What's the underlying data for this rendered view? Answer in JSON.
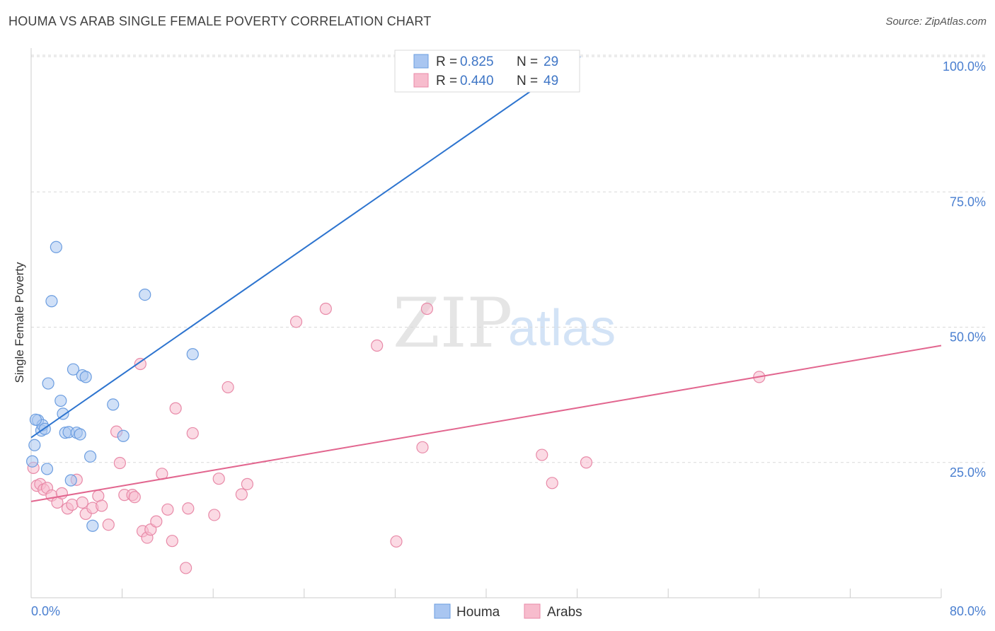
{
  "title": "HOUMA VS ARAB SINGLE FEMALE POVERTY CORRELATION CHART",
  "source": "Source: ZipAtlas.com",
  "watermark": {
    "zip": "ZIP",
    "atlas": "atlas"
  },
  "colors": {
    "houma_fill": "#a9c6f1",
    "houma_stroke": "#6b9de0",
    "houma_line": "#2d74cf",
    "arabs_fill": "#f7bccd",
    "arabs_stroke": "#e88aa8",
    "arabs_line": "#e2668f",
    "grid": "#d9d9d9",
    "tick_text": "#4a7fd0"
  },
  "legend": {
    "rows": [
      {
        "r_label": "R =",
        "r_value": "0.825",
        "n_label": "N =",
        "n_value": "29"
      },
      {
        "r_label": "R =",
        "r_value": "0.440",
        "n_label": "N =",
        "n_value": "49"
      }
    ]
  },
  "chart_data": {
    "type": "scatter",
    "title": "HOUMA VS ARAB SINGLE FEMALE POVERTY CORRELATION CHART",
    "xlabel": "",
    "ylabel": "Single Female Poverty",
    "xlim": [
      0,
      80
    ],
    "ylim": [
      0,
      102
    ],
    "x_tick_labels": [
      "0.0%",
      "80.0%"
    ],
    "y_ticks": [
      25,
      50,
      75,
      100
    ],
    "y_tick_labels": [
      "25.0%",
      "50.0%",
      "75.0%",
      "100.0%"
    ],
    "grid": true,
    "legend_position": "top-center",
    "series": [
      {
        "name": "Houma",
        "points": [
          [
            0.1,
            25.2
          ],
          [
            0.3,
            28.2
          ],
          [
            0.6,
            32.8
          ],
          [
            0.9,
            30.9
          ],
          [
            1.0,
            31.9
          ],
          [
            1.2,
            31.2
          ],
          [
            1.4,
            23.8
          ],
          [
            1.5,
            39.6
          ],
          [
            1.8,
            54.8
          ],
          [
            2.2,
            64.8
          ],
          [
            2.6,
            36.4
          ],
          [
            2.8,
            34.0
          ],
          [
            3.0,
            30.5
          ],
          [
            3.3,
            30.6
          ],
          [
            3.5,
            21.7
          ],
          [
            3.7,
            42.2
          ],
          [
            4.0,
            30.5
          ],
          [
            4.3,
            30.2
          ],
          [
            4.5,
            41.1
          ],
          [
            4.8,
            40.8
          ],
          [
            5.2,
            26.1
          ],
          [
            5.4,
            13.3
          ],
          [
            7.2,
            35.7
          ],
          [
            8.1,
            29.9
          ],
          [
            10.0,
            56.0
          ],
          [
            14.2,
            45.0
          ],
          [
            40.8,
            95.2
          ],
          [
            45.2,
            95.2
          ],
          [
            0.4,
            32.9
          ]
        ],
        "trendline": {
          "x": [
            0,
            48.3
          ],
          "y": [
            29.6,
            100
          ]
        }
      },
      {
        "name": "Arabs",
        "points": [
          [
            0.2,
            24.0
          ],
          [
            0.5,
            20.7
          ],
          [
            0.8,
            21.0
          ],
          [
            1.1,
            20.0
          ],
          [
            1.4,
            20.3
          ],
          [
            1.8,
            18.9
          ],
          [
            2.3,
            17.6
          ],
          [
            2.7,
            19.3
          ],
          [
            3.2,
            16.5
          ],
          [
            3.6,
            17.2
          ],
          [
            4.0,
            21.8
          ],
          [
            4.5,
            17.6
          ],
          [
            4.8,
            15.5
          ],
          [
            5.4,
            16.6
          ],
          [
            5.9,
            18.8
          ],
          [
            6.2,
            17.0
          ],
          [
            6.8,
            13.5
          ],
          [
            7.5,
            30.7
          ],
          [
            7.8,
            24.9
          ],
          [
            8.2,
            19.0
          ],
          [
            8.9,
            19.0
          ],
          [
            9.1,
            18.6
          ],
          [
            9.6,
            43.2
          ],
          [
            9.8,
            12.3
          ],
          [
            10.2,
            11.1
          ],
          [
            10.5,
            12.6
          ],
          [
            11.0,
            14.1
          ],
          [
            11.5,
            22.9
          ],
          [
            12.0,
            16.3
          ],
          [
            12.4,
            10.5
          ],
          [
            12.7,
            35.0
          ],
          [
            13.6,
            5.5
          ],
          [
            13.8,
            16.5
          ],
          [
            14.2,
            30.4
          ],
          [
            16.1,
            15.3
          ],
          [
            16.5,
            22.0
          ],
          [
            17.3,
            38.9
          ],
          [
            18.5,
            19.1
          ],
          [
            19.0,
            21.0
          ],
          [
            23.3,
            51.0
          ],
          [
            25.9,
            53.4
          ],
          [
            30.4,
            46.6
          ],
          [
            32.1,
            10.4
          ],
          [
            34.4,
            27.8
          ],
          [
            34.8,
            53.4
          ],
          [
            44.9,
            26.4
          ],
          [
            45.8,
            21.2
          ],
          [
            48.8,
            25.0
          ],
          [
            64.0,
            40.8
          ]
        ],
        "trendline": {
          "x": [
            0,
            80
          ],
          "y": [
            17.8,
            46.6
          ]
        }
      }
    ]
  }
}
